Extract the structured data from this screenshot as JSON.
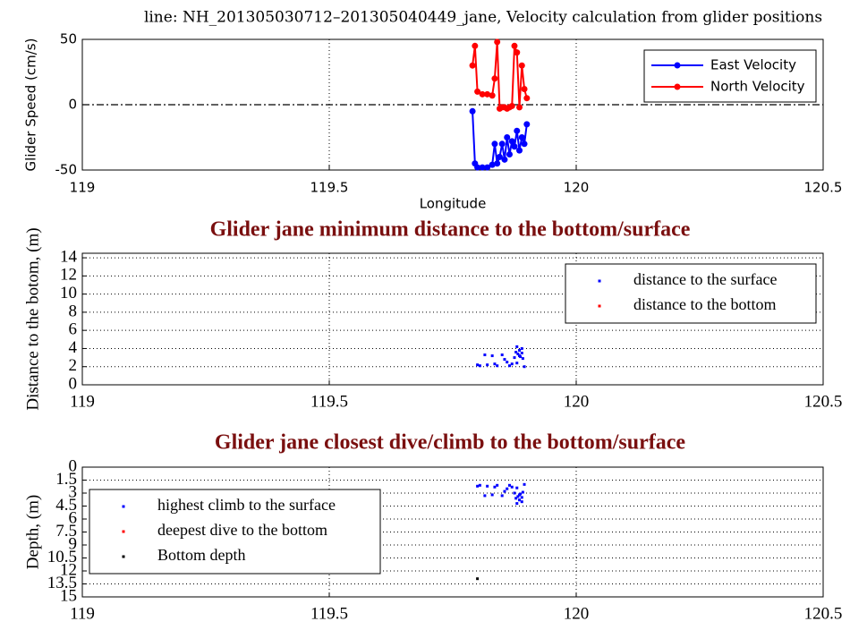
{
  "chart_data": [
    {
      "type": "line",
      "title": "line: NH_201305030712–201305040449_jane, Velocity calculation from glider positions",
      "x_label": "Longitude",
      "y_label": "Glider Speed (cm/s)",
      "xlim": [
        119,
        120.5
      ],
      "xticks": [
        119,
        119.5,
        120,
        120.5
      ],
      "ylim": [
        -50,
        50
      ],
      "yticks": [
        -50,
        0,
        50
      ],
      "grid": "x",
      "zero_line": true,
      "legend": "upper right",
      "series": [
        {
          "name": "East Velocity",
          "color": "#0000ff",
          "x": [
            119.79,
            119.795,
            119.8,
            119.81,
            119.82,
            119.83,
            119.835,
            119.84,
            119.845,
            119.85,
            119.855,
            119.86,
            119.865,
            119.87,
            119.875,
            119.88,
            119.885,
            119.89,
            119.895,
            119.9
          ],
          "values": [
            -5,
            -45,
            -48,
            -48,
            -48,
            -46,
            -30,
            -45,
            -40,
            -30,
            -42,
            -25,
            -38,
            -28,
            -32,
            -20,
            -35,
            -25,
            -30,
            -15
          ]
        },
        {
          "name": "North Velocity",
          "color": "#ff0000",
          "x": [
            119.79,
            119.795,
            119.8,
            119.81,
            119.82,
            119.83,
            119.835,
            119.84,
            119.845,
            119.85,
            119.855,
            119.86,
            119.865,
            119.87,
            119.875,
            119.88,
            119.885,
            119.89,
            119.895,
            119.9
          ],
          "values": [
            30,
            45,
            10,
            8,
            8,
            7,
            20,
            48,
            -3,
            -2,
            -2,
            -3,
            -2,
            -1,
            45,
            40,
            -2,
            30,
            12,
            5
          ]
        }
      ]
    },
    {
      "type": "scatter",
      "title": "Glider jane minimum distance to the bottom/surface",
      "y_label": "Distance to the botom, (m)",
      "xlim": [
        119,
        120.5
      ],
      "xticks": [
        119,
        119.5,
        120,
        120.5
      ],
      "ylim": [
        0,
        14.5
      ],
      "yticks": [
        0,
        2,
        4,
        6,
        8,
        10,
        12,
        14
      ],
      "grid": "both",
      "legend": "upper right",
      "series": [
        {
          "name": "distance to the surface",
          "color": "#0000ff",
          "x": [
            119.8,
            119.805,
            119.815,
            119.82,
            119.83,
            119.835,
            119.84,
            119.85,
            119.855,
            119.86,
            119.865,
            119.87,
            119.875,
            119.878,
            119.88,
            119.882,
            119.885,
            119.887,
            119.89,
            119.892,
            119.895,
            119.88,
            119.89,
            119.885
          ],
          "values": [
            2.2,
            2.1,
            3.3,
            2.2,
            3.2,
            2.3,
            2.1,
            3.3,
            2.8,
            2.5,
            2.1,
            2.3,
            3.0,
            3.6,
            4.2,
            3.4,
            3.8,
            3.1,
            3.5,
            2.9,
            2.0,
            2.4,
            4.0,
            3.2
          ]
        },
        {
          "name": "distance to the bottom",
          "color": "#ff0000",
          "x": [],
          "values": []
        }
      ]
    },
    {
      "type": "scatter",
      "title": "Glider jane closest dive/climb to the bottom/surface",
      "y_label": "Depth, (m)",
      "xlim": [
        119,
        120.5
      ],
      "xticks": [
        119,
        119.5,
        120,
        120.5
      ],
      "ylim": [
        0,
        15
      ],
      "y_reversed": true,
      "yticks": [
        0,
        1.5,
        3,
        4.5,
        6,
        7.5,
        9,
        10.5,
        12,
        13.5,
        15
      ],
      "grid": "both",
      "legend": "lower left",
      "series": [
        {
          "name": "highest climb to the surface",
          "color": "#0000ff",
          "x": [
            119.8,
            119.805,
            119.815,
            119.82,
            119.83,
            119.835,
            119.84,
            119.85,
            119.855,
            119.86,
            119.865,
            119.87,
            119.875,
            119.878,
            119.88,
            119.882,
            119.885,
            119.887,
            119.89,
            119.892,
            119.895,
            119.88,
            119.89,
            119.885
          ],
          "values": [
            2.2,
            2.1,
            3.3,
            2.2,
            3.2,
            2.3,
            2.1,
            3.3,
            2.8,
            2.5,
            2.1,
            2.3,
            3.0,
            3.6,
            4.2,
            3.4,
            3.8,
            3.1,
            3.5,
            2.9,
            2.0,
            2.4,
            4.0,
            3.2
          ]
        },
        {
          "name": "deepest dive to the bottom",
          "color": "#ff0000",
          "x": [],
          "values": []
        },
        {
          "name": "Bottom depth",
          "color": "#000000",
          "x": [
            119.8
          ],
          "values": [
            12.9
          ]
        }
      ]
    }
  ]
}
